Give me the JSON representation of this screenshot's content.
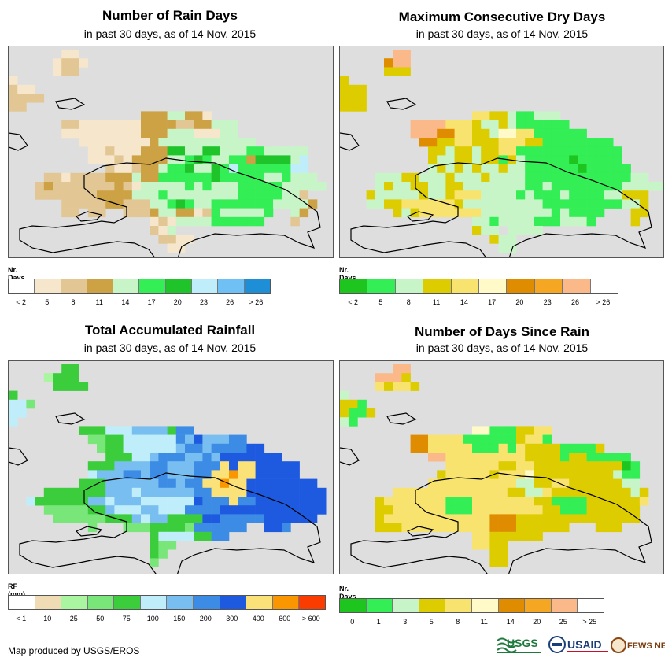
{
  "footer": {
    "credit": "Map produced by USGS/EROS"
  },
  "logos": {
    "usgs": "USGS",
    "usaid": "USAID",
    "fewsnet": "FEWS NET"
  },
  "panels": [
    {
      "title": "Number of Rain Days",
      "subtitle": "in past 30 days, as of 14 Nov. 2015",
      "legend_title": "Nr. Days",
      "legend_labels": [
        "< 2",
        "5",
        "8",
        "11",
        "14",
        "17",
        "20",
        "23",
        "26",
        "> 26"
      ],
      "legend_colors": [
        "#ffffff",
        "#f5e6cc",
        "#e2c795",
        "#cca244",
        "#c8f5c8",
        "#33ee55",
        "#1fc32a",
        "#bfeefa",
        "#6ec0f5",
        "#1e8ed6"
      ],
      "grid": [
        "......bb.............................",
        ".....bccb............................",
        ".....bcc.............................",
        "b....................................",
        "cbb..................................",
        "cccc.................................",
        "cc...................................",
        "...............dddeeddb..............",
        "......ccbbbbbbbddddccddeee...........",
        "......bbbbbbbbbdddeeebbbee...........",
        "........bbbbbbbbdeeeeeeeeeee.........",
        ".........bbcbbbdddggeeggeeeffeeeee...",
        ".........bbbcbddddeefgfeeffdggggeh...",
        "...........cbbcddeffgeegfhffffffhh...",
        "....ccbccccdddeddffffffgfffffeefeee..",
        "...cdcccccccdcbeeeeefefeeefffffeeeee.",
        "...cccccccddddeeefeeeeeeeefffffeec...",
        "......cccccddccceefgfeefffffffeeeed..",
        "......cc.cc..cccdeeddbcfeeeeef..ed...",
        "................bcbeeeeffffff...c....",
        "................cbe..................",
        ".................ccbb................",
        "..................bb................."
      ]
    },
    {
      "title": "Maximum Consecutive Dry Days",
      "subtitle": "in past 30 days, as of 14 Nov. 2015",
      "legend_title": "Nr. Days",
      "legend_labels": [
        "< 2",
        "5",
        "8",
        "11",
        "14",
        "17",
        "20",
        "23",
        "26",
        "> 26"
      ],
      "legend_colors": [
        "#1ec51e",
        "#33ee55",
        "#c8f5c8",
        "#ddcc00",
        "#f8e36e",
        "#fffac8",
        "#e08c00",
        "#f5a623",
        "#fbb98a",
        "#ffffff"
      ],
      "grid": [
        "......ii.............................",
        ".....gii.............................",
        ".....ddd.............................",
        "d....................................",
        "ddd..................................",
        "ddd..................................",
        "ddd..................................",
        "...............eeddcbbccc............",
        "........iiiieeedccdcbbbbbb...........",
        "........iiiggeeddcffeebbbbbb.........",
        ".........ggddeedddeeeddbbbbbbbb......",
        "..........ddcddcddeebbbbbbbbbbbb.....",
        "..........dccddcddbdcbbbbbabbbbb.....",
        "..........cdcdcdccdccbbbbbbabbbbb....",
        "....cccddcccdcccdccccbbbbbbbbbbbbcc..",
        "....cdccddccddcccccccbbcbbbbbbbbccccc",
        "...dcccccdccdeeeccccbcbbbcbbbbccddd..",
        "...ccddeeeeeedcccccccccbbbbbbbbbccd..",
        "......dcdeeeeeeeccccccccbcbbbb...dd..",
        "...............ccbccccbbbcccb....d...",
        "...............dcc.cccc..............",
        ".................dcc.................",
        "..................cc................."
      ]
    },
    {
      "title": "Total Accumulated Rainfall",
      "subtitle": "in past 30 days, as of 14 Nov. 2015",
      "legend_title": "RF (mm)",
      "legend_labels": [
        "< 1",
        "10",
        "25",
        "50",
        "75",
        "100",
        "150",
        "200",
        "300",
        "400",
        "600",
        "> 600"
      ],
      "legend_colors": [
        "#ffffff",
        "#f0dcb4",
        "#aaf5a0",
        "#78e678",
        "#3ccd3c",
        "#bfeefa",
        "#78bef0",
        "#3c8ce6",
        "#1e5ae0",
        "#fae178",
        "#fa9600",
        "#fa3c00"
      ],
      "grid": [
        "......ee.............................",
        "....ceee.............................",
        ".....eeee............................",
        "e....................................",
        "ffd..................................",
        "ff...................................",
        "f....................................",
        "........eeefffggggehh................",
        ".........ddeeffffffhgiggghh..........",
        "..........deeffffffghhghhhhii........",
        "...........eeeffghhhgghgiiiiiii......",
        ".........eeegggghhggghhhjijjiiiii....",
        ".........fggghhghhggghhjjkjjiiiii....",
        "........eeegggggghhghhjjkjjiiiiiiii..",
        "....eeeeeeegggfgggggghhjjjjiiiiiiiii.",
        "..feeeeeeggfgggffffffihhhjhhiiiiiiii.",
        "....dddddeegfffggfffhhhhiiiiiiiiiiii.",
        ".....ddddddeeegfggeeeeiihhhhhiiiiii..",
        ".........d...dddeeeedhhhhhh..iih.....",
        "................effffeehh............",
        "................edd..................",
        "................ed...................",
        "................d...................."
      ]
    },
    {
      "title": "Number of Days Since Rain",
      "subtitle": "in past 30 days, as of 14 Nov. 2015",
      "legend_title": "Nr. Days",
      "legend_labels": [
        "0",
        "1",
        "3",
        "5",
        "8",
        "11",
        "14",
        "20",
        "25",
        "> 25"
      ],
      "legend_colors": [
        "#1ec51e",
        "#33ee55",
        "#c8f5c8",
        "#ddcc00",
        "#f8e36e",
        "#fffac8",
        "#e08c00",
        "#f5a623",
        "#fbb98a",
        "#ffffff"
      ],
      "grid": [
        "......ii.............................",
        "....iiid.............................",
        "....edeed............................",
        "c....................................",
        "ddb..................................",
        "dbbd.................................",
        "cb...................................",
        "...............ffbbbddee.............",
        "........ggeeeebbbbbbdeeb.............",
        "........ggeeeeebbbebeddddbbbbd.......",
        "..........iieeeeeeeeeddddbddbbbbb....",
        "............eeeeeeddeeddddddddddab...",
        "...........deeeeedeeefdddddddddcbb...",
        "..........eeeeeeeeeeccddeeddddddcc...",
        "......eeeeeeeeeeeeeddccedddddddddcd..",
        "....deeeeeeebbbeeeeeeeddbbbbdddddde..",
        "....ddeeeeeebbbeeeeeeeeddbbbdddddd...",
        "....deeeeeeeeeeeegggdddddddddddddd...",
        "....dddeeeeeeeeeegggdddddd...ddd.....",
        "...............eedddddd..............",
        "...............eedd..................",
        ".................dd..................",
        ".................dd.................."
      ]
    }
  ]
}
